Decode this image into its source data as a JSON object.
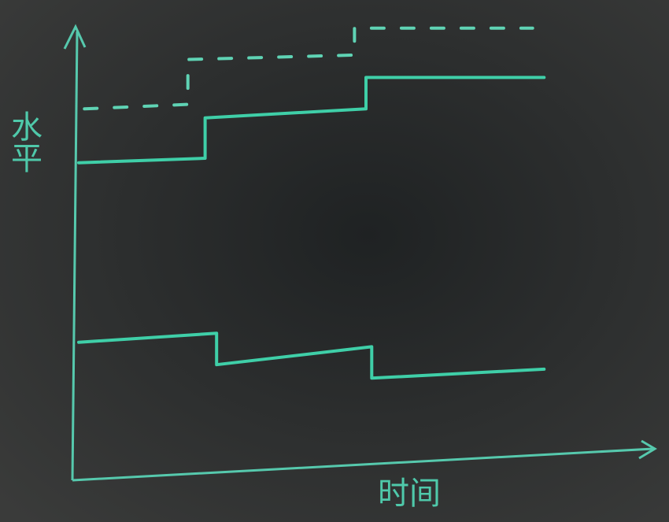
{
  "chart_data": {
    "type": "line",
    "y_label": "水平",
    "x_label": "时间",
    "xlim": [
      0,
      100
    ],
    "ylim": [
      0,
      100
    ],
    "series": [
      {
        "color": "#5fd3b4",
        "style": "dashed",
        "x": [
          1,
          19,
          19,
          48,
          48,
          79
        ],
        "values": [
          81,
          82,
          92,
          93,
          99,
          99
        ]
      },
      {
        "color": "#3fcfa8",
        "style": "solid",
        "x": [
          0,
          22,
          22,
          50,
          50,
          81
        ],
        "values": [
          69,
          70,
          79,
          81,
          88,
          88
        ]
      },
      {
        "color": "#3fcfa8",
        "style": "solid",
        "x": [
          0,
          24,
          24,
          51,
          51,
          81
        ],
        "values": [
          29,
          31,
          24,
          28,
          21,
          23
        ]
      }
    ]
  }
}
